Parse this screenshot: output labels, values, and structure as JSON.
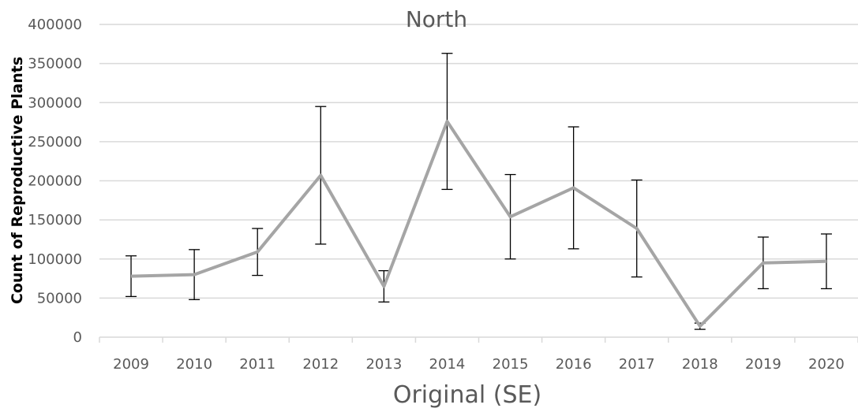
{
  "chart_data": {
    "type": "line",
    "title": "North",
    "xlabel": "Original (SE)",
    "ylabel": "Count of Reproductive Plants",
    "categories": [
      "2009",
      "2010",
      "2011",
      "2012",
      "2013",
      "2014",
      "2015",
      "2016",
      "2017",
      "2018",
      "2019",
      "2020"
    ],
    "series": [
      {
        "values": [
          78000,
          80000,
          109000,
          207000,
          65000,
          276000,
          154000,
          191000,
          139000,
          14000,
          95000,
          97000
        ],
        "error": [
          26000,
          32000,
          30000,
          88000,
          20000,
          87000,
          54000,
          78000,
          62000,
          4000,
          33000,
          35000
        ]
      }
    ],
    "ylim": [
      0,
      400000
    ],
    "yticks": [
      0,
      50000,
      100000,
      150000,
      200000,
      250000,
      300000,
      350000,
      400000
    ],
    "grid": true,
    "legend": "none",
    "colors": {
      "line": "#A5A5A5",
      "error_bar": "#000000",
      "grid": "#D9D9D9",
      "text": "#595959"
    }
  }
}
